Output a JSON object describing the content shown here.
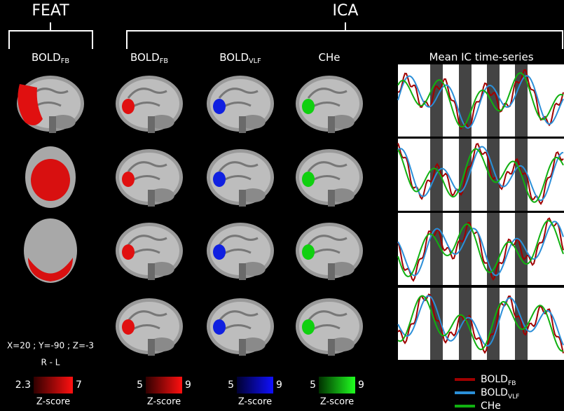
{
  "header": {
    "feat": "FEAT",
    "ica": "ICA"
  },
  "columns": [
    {
      "main": "BOLD",
      "sub": "FB"
    },
    {
      "main": "BOLD",
      "sub": "FB"
    },
    {
      "main": "BOLD",
      "sub": "VLF"
    },
    {
      "main": "CHe"
    }
  ],
  "timeseries_title": "Mean IC time-series",
  "coordinates": "X=20 ; Y=-90 ; Z=-3",
  "orientation": "R - L",
  "colorbars": [
    {
      "min": 2.3,
      "max": 7,
      "label": "Z-score"
    },
    {
      "min": 5,
      "max": 9,
      "label": "Z-score"
    },
    {
      "min": 5,
      "max": 9,
      "label": "Z-score"
    },
    {
      "min": 5,
      "max": 9,
      "label": "Z-score"
    }
  ],
  "legend": [
    {
      "main": "BOLD",
      "sub": "FB"
    },
    {
      "main": "BOLD",
      "sub": "VLF"
    },
    {
      "main": "CHe"
    }
  ]
}
